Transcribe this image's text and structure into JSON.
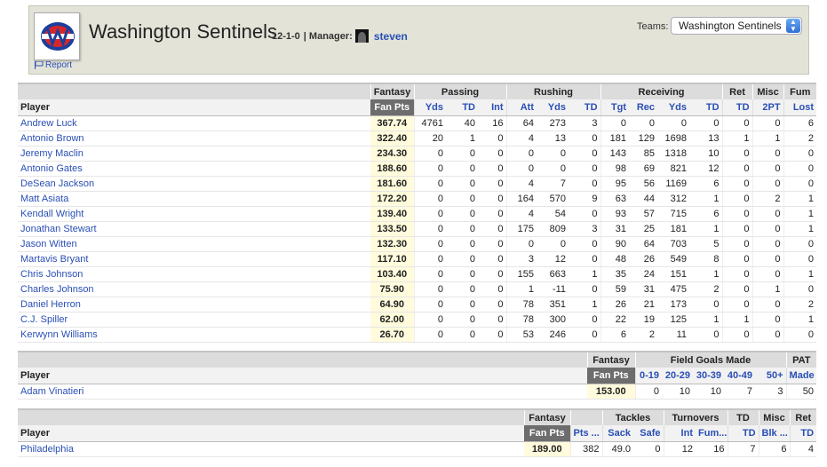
{
  "header": {
    "team_name": "Washington Sentinels",
    "record": "12-1-0",
    "manager_label": "| Manager:",
    "manager_name": "steven",
    "report_label": "Report",
    "teams_label": "Teams:",
    "teams_selected": "Washington Sentinels"
  },
  "offense": {
    "groups": [
      "Fantasy",
      "Passing",
      "Rushing",
      "Receiving",
      "Ret",
      "Misc",
      "Fum"
    ],
    "columns": [
      "Player",
      "Fan Pts",
      "Yds",
      "TD",
      "Int",
      "Att",
      "Yds",
      "TD",
      "Tgt",
      "Rec",
      "Yds",
      "TD",
      "TD",
      "2PT",
      "Lost"
    ],
    "rows": [
      [
        "Andrew Luck",
        "367.74",
        "4761",
        "40",
        "16",
        "64",
        "273",
        "3",
        "0",
        "0",
        "0",
        "0",
        "0",
        "0",
        "6"
      ],
      [
        "Antonio Brown",
        "322.40",
        "20",
        "1",
        "0",
        "4",
        "13",
        "0",
        "181",
        "129",
        "1698",
        "13",
        "1",
        "1",
        "2"
      ],
      [
        "Jeremy Maclin",
        "234.30",
        "0",
        "0",
        "0",
        "0",
        "0",
        "0",
        "143",
        "85",
        "1318",
        "10",
        "0",
        "0",
        "0"
      ],
      [
        "Antonio Gates",
        "188.60",
        "0",
        "0",
        "0",
        "0",
        "0",
        "0",
        "98",
        "69",
        "821",
        "12",
        "0",
        "0",
        "0"
      ],
      [
        "DeSean Jackson",
        "181.60",
        "0",
        "0",
        "0",
        "4",
        "7",
        "0",
        "95",
        "56",
        "1169",
        "6",
        "0",
        "0",
        "0"
      ],
      [
        "Matt Asiata",
        "172.20",
        "0",
        "0",
        "0",
        "164",
        "570",
        "9",
        "63",
        "44",
        "312",
        "1",
        "0",
        "2",
        "1"
      ],
      [
        "Kendall Wright",
        "139.40",
        "0",
        "0",
        "0",
        "4",
        "54",
        "0",
        "93",
        "57",
        "715",
        "6",
        "0",
        "0",
        "1"
      ],
      [
        "Jonathan Stewart",
        "133.50",
        "0",
        "0",
        "0",
        "175",
        "809",
        "3",
        "31",
        "25",
        "181",
        "1",
        "0",
        "0",
        "1"
      ],
      [
        "Jason Witten",
        "132.30",
        "0",
        "0",
        "0",
        "0",
        "0",
        "0",
        "90",
        "64",
        "703",
        "5",
        "0",
        "0",
        "0"
      ],
      [
        "Martavis Bryant",
        "117.10",
        "0",
        "0",
        "0",
        "3",
        "12",
        "0",
        "48",
        "26",
        "549",
        "8",
        "0",
        "0",
        "0"
      ],
      [
        "Chris Johnson",
        "103.40",
        "0",
        "0",
        "0",
        "155",
        "663",
        "1",
        "35",
        "24",
        "151",
        "1",
        "0",
        "0",
        "1"
      ],
      [
        "Charles Johnson",
        "75.90",
        "0",
        "0",
        "0",
        "1",
        "-11",
        "0",
        "59",
        "31",
        "475",
        "2",
        "0",
        "1",
        "0"
      ],
      [
        "Daniel Herron",
        "64.90",
        "0",
        "0",
        "0",
        "78",
        "351",
        "1",
        "26",
        "21",
        "173",
        "0",
        "0",
        "0",
        "2"
      ],
      [
        "C.J. Spiller",
        "62.00",
        "0",
        "0",
        "0",
        "78",
        "300",
        "0",
        "22",
        "19",
        "125",
        "1",
        "1",
        "0",
        "1"
      ],
      [
        "Kerwynn Williams",
        "26.70",
        "0",
        "0",
        "0",
        "53",
        "246",
        "0",
        "6",
        "2",
        "11",
        "0",
        "0",
        "0",
        "0"
      ]
    ]
  },
  "kicker": {
    "groups": [
      "Fantasy",
      "Field Goals Made",
      "PAT"
    ],
    "columns": [
      "Player",
      "Fan Pts",
      "0-19",
      "20-29",
      "30-39",
      "40-49",
      "50+",
      "Made"
    ],
    "rows": [
      [
        "Adam Vinatieri",
        "153.00",
        "0",
        "10",
        "10",
        "7",
        "3",
        "50"
      ]
    ]
  },
  "defense": {
    "groups": [
      "Fantasy",
      "Tackles",
      "Turnovers",
      "TD",
      "Misc",
      "Ret"
    ],
    "columns": [
      "Player",
      "Fan Pts",
      "Pts ...",
      "Sack",
      "Safe",
      "Int",
      "Fum...",
      "TD",
      "Blk ...",
      "TD"
    ],
    "rows": [
      [
        "Philadelphia",
        "189.00",
        "382",
        "49.0",
        "0",
        "12",
        "16",
        "7",
        "6",
        "4"
      ]
    ]
  }
}
